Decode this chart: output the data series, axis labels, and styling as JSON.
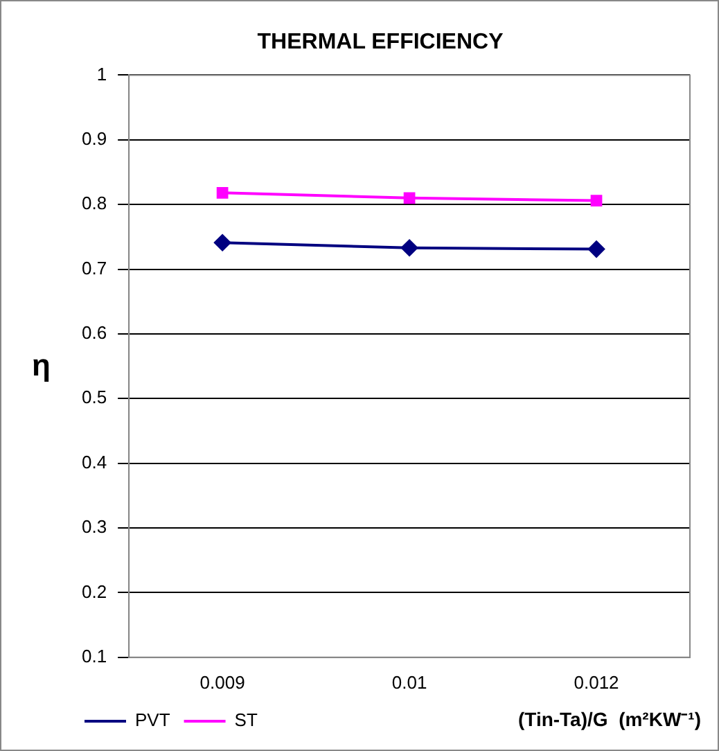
{
  "chart_data": {
    "type": "line",
    "title": "THERMAL EFFICIENCY",
    "xlabel": "(Tin-Ta)/G  (m²KW⁻¹)",
    "ylabel": "η",
    "categories": [
      "0.009",
      "0.01",
      "0.012"
    ],
    "series": [
      {
        "name": "PVT",
        "color": "#000080",
        "values": [
          0.741,
          0.733,
          0.731
        ],
        "marker": "diamond"
      },
      {
        "name": "ST",
        "color": "#ff00ff",
        "values": [
          0.818,
          0.81,
          0.806
        ],
        "marker": "square"
      }
    ],
    "ylim": [
      0.1,
      1
    ],
    "yticks": [
      0.1,
      0.2,
      0.3,
      0.4,
      0.5,
      0.6,
      0.7,
      0.8,
      0.9,
      1
    ],
    "grid": "y",
    "legend": "bottom left",
    "line_style": "solid"
  }
}
